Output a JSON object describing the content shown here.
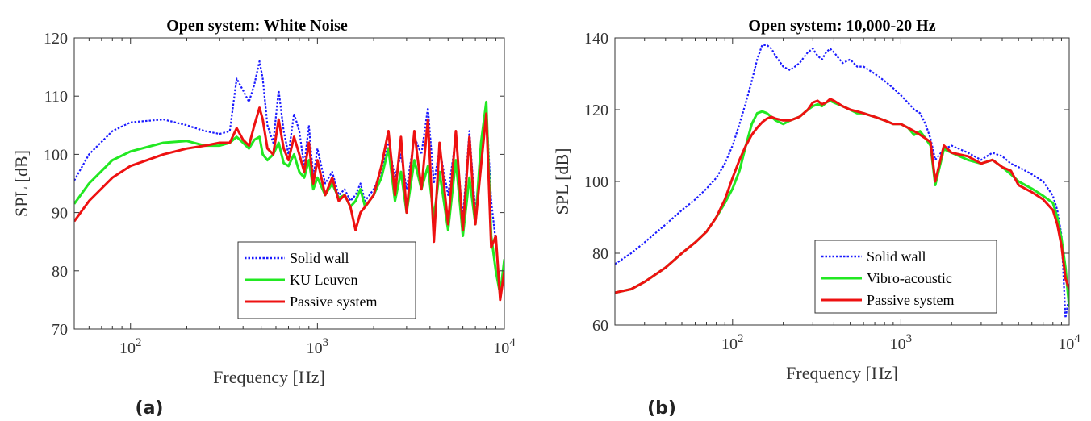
{
  "chart_data": [
    {
      "type": "line",
      "panel_label": "(a)",
      "title": "Open system: White Noise",
      "xlabel": "Frequency [Hz]",
      "ylabel": "SPL [dB]",
      "xscale": "log",
      "xlim": [
        50,
        10000
      ],
      "ylim": [
        70,
        120
      ],
      "yticks": [
        "70",
        "80",
        "90",
        "100",
        "110",
        "120"
      ],
      "xticks": [
        {
          "base": "10",
          "exp": "2",
          "value": 100
        },
        {
          "base": "10",
          "exp": "3",
          "value": 1000
        },
        {
          "base": "10",
          "exp": "4",
          "value": 10000
        }
      ],
      "legend_position": "bottom-right",
      "series": [
        {
          "name": "Solid wall",
          "color": "#1a1aff",
          "style": "dotted",
          "x": [
            50,
            60,
            80,
            100,
            150,
            200,
            250,
            300,
            340,
            370,
            400,
            430,
            460,
            490,
            510,
            540,
            580,
            620,
            660,
            700,
            750,
            800,
            850,
            900,
            950,
            1000,
            1100,
            1200,
            1300,
            1400,
            1500,
            1600,
            1700,
            1800,
            2000,
            2200,
            2400,
            2600,
            2800,
            3000,
            3300,
            3600,
            3900,
            4200,
            4500,
            5000,
            5500,
            6000,
            6500,
            7000,
            7500,
            8000,
            8500,
            9000,
            9500,
            10000
          ],
          "y": [
            95.5,
            100,
            104,
            105.5,
            106,
            105,
            104,
            103.5,
            104,
            113,
            111,
            109,
            112,
            116,
            113,
            105,
            102,
            111,
            104,
            100,
            107,
            104,
            98,
            105,
            96,
            101,
            95,
            97,
            93,
            94,
            92,
            93,
            95,
            92,
            94,
            97,
            102,
            96,
            100,
            94,
            103,
            100,
            108,
            95,
            101,
            93,
            103,
            89,
            104,
            90,
            100,
            108,
            92,
            85,
            77,
            80
          ]
        },
        {
          "name": "KU Leuven",
          "color": "#22e822",
          "style": "solid",
          "x": [
            50,
            60,
            80,
            100,
            150,
            200,
            250,
            300,
            340,
            370,
            400,
            430,
            460,
            490,
            510,
            540,
            580,
            620,
            660,
            700,
            750,
            800,
            850,
            900,
            950,
            1000,
            1100,
            1200,
            1300,
            1400,
            1500,
            1600,
            1700,
            1800,
            2000,
            2200,
            2400,
            2600,
            2800,
            3000,
            3300,
            3600,
            3900,
            4200,
            4500,
            5000,
            5500,
            6000,
            6500,
            7000,
            7500,
            8000,
            8500,
            9000,
            9500,
            10000
          ],
          "y": [
            91.5,
            95,
            99,
            100.5,
            102,
            102.3,
            101.5,
            101.5,
            102,
            103,
            102,
            101,
            102.5,
            103,
            100,
            99,
            100,
            102,
            98.5,
            98,
            100,
            97,
            96,
            99,
            94,
            96,
            93,
            95,
            92.5,
            93,
            91,
            92,
            94,
            91,
            93,
            96,
            101,
            92,
            97,
            90,
            99,
            94,
            98,
            89,
            97,
            87,
            99,
            86,
            96,
            88,
            102,
            109,
            86,
            80,
            76,
            82
          ]
        },
        {
          "name": "Passive system",
          "color": "#ee1111",
          "style": "solid",
          "x": [
            50,
            60,
            80,
            100,
            150,
            200,
            250,
            300,
            340,
            370,
            400,
            430,
            460,
            490,
            510,
            540,
            580,
            620,
            660,
            700,
            750,
            800,
            850,
            900,
            950,
            1000,
            1100,
            1200,
            1300,
            1400,
            1500,
            1600,
            1700,
            1800,
            2000,
            2200,
            2400,
            2600,
            2800,
            3000,
            3300,
            3600,
            3900,
            4200,
            4500,
            5000,
            5500,
            6000,
            6500,
            7000,
            7500,
            8000,
            8500,
            9000,
            9500,
            10000
          ],
          "y": [
            88.5,
            92,
            96,
            98,
            100,
            101,
            101.5,
            102,
            102,
            104.5,
            102.5,
            101.5,
            105,
            108,
            106,
            101,
            100,
            106,
            101,
            99,
            103,
            100,
            97,
            102,
            95,
            99,
            93,
            96,
            92,
            93,
            91,
            87,
            90,
            91,
            93,
            98,
            104,
            93,
            103,
            90,
            104,
            94,
            106,
            85,
            102,
            88,
            104,
            87,
            103,
            88,
            98,
            107,
            84,
            86,
            75,
            80
          ]
        }
      ]
    },
    {
      "type": "line",
      "panel_label": "(b)",
      "title": "Open system: 10,000-20 Hz",
      "xlabel": "Frequency [Hz]",
      "ylabel": "SPL [dB]",
      "xscale": "log",
      "xlim": [
        20,
        10000
      ],
      "ylim": [
        60,
        140
      ],
      "yticks": [
        "60",
        "80",
        "100",
        "120",
        "140"
      ],
      "xticks": [
        {
          "base": "10",
          "exp": "2",
          "value": 100
        },
        {
          "base": "10",
          "exp": "3",
          "value": 1000
        },
        {
          "base": "10",
          "exp": "4",
          "value": 10000
        }
      ],
      "legend_position": "bottom-right",
      "series": [
        {
          "name": "Solid wall",
          "color": "#1a1aff",
          "style": "dotted",
          "x": [
            20,
            25,
            30,
            40,
            50,
            60,
            70,
            80,
            90,
            100,
            110,
            120,
            130,
            140,
            150,
            160,
            170,
            180,
            200,
            220,
            250,
            280,
            300,
            320,
            340,
            360,
            380,
            400,
            450,
            500,
            550,
            600,
            700,
            800,
            900,
            1000,
            1100,
            1200,
            1300,
            1400,
            1500,
            1600,
            1800,
            2000,
            2500,
            3000,
            3500,
            4000,
            4500,
            5000,
            6000,
            7000,
            8000,
            8500,
            9000,
            9500,
            10000
          ],
          "y": [
            77,
            80,
            83,
            88,
            92,
            95,
            98,
            101,
            105,
            110,
            116,
            122,
            128,
            134,
            138,
            138,
            137,
            135,
            132,
            131,
            133,
            136,
            137,
            135,
            134,
            136,
            137,
            136,
            133,
            134,
            132,
            132,
            130,
            128,
            126,
            124,
            122,
            120,
            119,
            116,
            112,
            106,
            109,
            110,
            108,
            106,
            108,
            107,
            105,
            104,
            102,
            100,
            96,
            92,
            85,
            62,
            68
          ]
        },
        {
          "name": "Vibro-acoustic",
          "color": "#22e822",
          "style": "solid",
          "x": [
            20,
            25,
            30,
            40,
            50,
            60,
            70,
            80,
            90,
            100,
            110,
            120,
            130,
            140,
            150,
            160,
            170,
            180,
            200,
            220,
            250,
            280,
            300,
            320,
            340,
            360,
            380,
            400,
            450,
            500,
            550,
            600,
            700,
            800,
            900,
            1000,
            1100,
            1200,
            1300,
            1400,
            1500,
            1600,
            1800,
            2000,
            2500,
            3000,
            3500,
            4000,
            4500,
            5000,
            6000,
            7000,
            8000,
            8500,
            9000,
            9500,
            10000
          ],
          "y": [
            69,
            70,
            72,
            76,
            80,
            83,
            86,
            90,
            94,
            98,
            103,
            110,
            116,
            119,
            119.5,
            119,
            118,
            117,
            116,
            117,
            118,
            120,
            121,
            121.5,
            121,
            122,
            122.5,
            122,
            121,
            120,
            119,
            119,
            118,
            117,
            116,
            116,
            115,
            113,
            114,
            112,
            110,
            99,
            109,
            108,
            106,
            105,
            106,
            104,
            102,
            100,
            98,
            96,
            94,
            90,
            84,
            76,
            65
          ]
        },
        {
          "name": "Passive system",
          "color": "#ee1111",
          "style": "solid",
          "x": [
            20,
            25,
            30,
            40,
            50,
            60,
            70,
            80,
            90,
            100,
            110,
            120,
            130,
            140,
            150,
            160,
            170,
            180,
            200,
            220,
            250,
            280,
            300,
            320,
            340,
            360,
            380,
            400,
            450,
            500,
            550,
            600,
            700,
            800,
            900,
            1000,
            1100,
            1200,
            1300,
            1400,
            1500,
            1600,
            1800,
            2000,
            2500,
            3000,
            3500,
            4000,
            4500,
            5000,
            6000,
            7000,
            8000,
            8500,
            9000,
            9500,
            10000
          ],
          "y": [
            69,
            70,
            72,
            76,
            80,
            83,
            86,
            90,
            95,
            101,
            106,
            110,
            113,
            115,
            116.5,
            117.5,
            118,
            117.5,
            117,
            117,
            118,
            120,
            122,
            122.5,
            121.5,
            122,
            123,
            122.5,
            121,
            120,
            119.5,
            119,
            118,
            117,
            116,
            116,
            115,
            114,
            113,
            112,
            111,
            100,
            110,
            108,
            107,
            105,
            106,
            104,
            103,
            99,
            97,
            95,
            92,
            88,
            82,
            73,
            70
          ]
        }
      ]
    }
  ]
}
